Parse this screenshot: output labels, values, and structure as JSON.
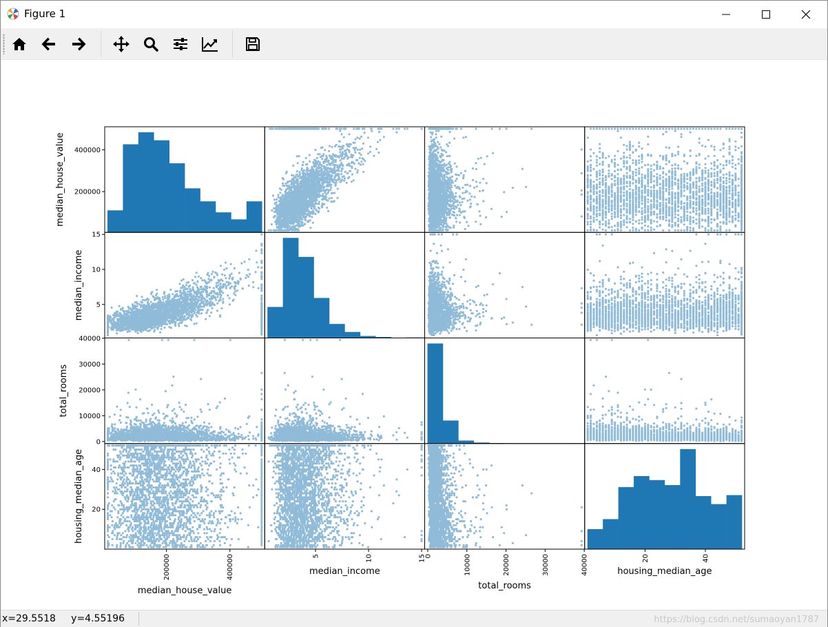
{
  "window": {
    "title": "Figure 1"
  },
  "toolbar": {
    "buttons": [
      {
        "name": "home-icon"
      },
      {
        "name": "back-icon"
      },
      {
        "name": "forward-icon"
      },
      {
        "name": "pan-icon"
      },
      {
        "name": "zoom-icon"
      },
      {
        "name": "subplots-icon"
      },
      {
        "name": "axes-edit-icon"
      },
      {
        "name": "save-icon"
      }
    ]
  },
  "status": {
    "coordinates": "x=29.5518     y=4.55196",
    "watermark": "https://blog.csdn.net/sumaoyan1787"
  },
  "chart_data": {
    "type": "scatter",
    "subtype": "scatter_matrix",
    "color": "#1f77b4",
    "variables": [
      "median_house_value",
      "median_income",
      "total_rooms",
      "housing_median_age"
    ],
    "ranges": {
      "median_house_value": [
        15000,
        500001
      ],
      "median_income": [
        0.5,
        15.0
      ],
      "total_rooms": [
        2,
        39320
      ],
      "housing_median_age": [
        1,
        52
      ]
    },
    "ticks": {
      "median_house_value": {
        "values": [
          200000,
          400000
        ],
        "labels": [
          "200000",
          "400000"
        ]
      },
      "median_income": {
        "values": [
          5,
          10,
          15
        ],
        "labels": [
          "5",
          "10",
          "15"
        ]
      },
      "total_rooms": {
        "values": [
          0,
          10000,
          20000,
          30000,
          40000
        ],
        "labels": [
          "0",
          "10000",
          "20000",
          "30000",
          "40000"
        ]
      },
      "housing_median_age": {
        "values": [
          20,
          40
        ],
        "labels": [
          "20",
          "40"
        ]
      }
    },
    "histograms": {
      "median_house_value": [
        0.22,
        0.88,
        1.0,
        0.92,
        0.69,
        0.44,
        0.31,
        0.2,
        0.13,
        0.31
      ],
      "median_income": [
        0.31,
        1.0,
        0.81,
        0.4,
        0.14,
        0.06,
        0.02,
        0.01,
        0.0,
        0.005
      ],
      "total_rooms": [
        1.0,
        0.23,
        0.03,
        0.01,
        0.005,
        0.0,
        0.0,
        0.0,
        0.0,
        0.002
      ],
      "housing_median_age": [
        0.2,
        0.3,
        0.62,
        0.73,
        0.69,
        0.64,
        1.0,
        0.53,
        0.45,
        0.54
      ]
    },
    "grid": false
  }
}
